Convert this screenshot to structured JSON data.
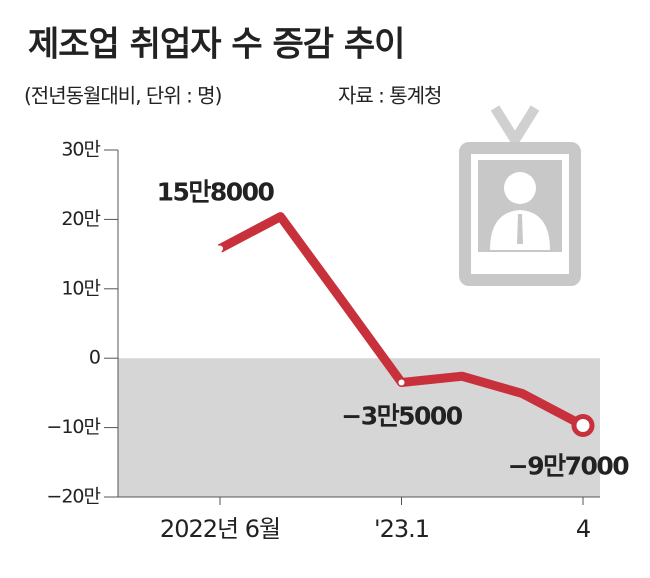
{
  "chart_data": {
    "type": "line",
    "title": "제조업 취업자 수 증감 추이",
    "subtitle": "(전년동월대비, 단위 : 명)",
    "source": "자료 : 통계청",
    "categories": [
      "2022년 6월",
      null,
      null,
      "'23.1",
      null,
      null,
      "4"
    ],
    "series": [
      {
        "name": null,
        "color": "#c8313b",
        "values": [
          158000,
          204000,
          85000,
          -35000,
          -26000,
          -51000,
          -97000
        ],
        "value_labels": [
          "15만8000",
          null,
          null,
          "−3만5000",
          null,
          null,
          "−9만7000"
        ]
      }
    ],
    "ylim": [
      -200000,
      300000
    ],
    "yticks": [
      {
        "value": 300000,
        "label": "30만"
      },
      {
        "value": 200000,
        "label": "20만"
      },
      {
        "value": 100000,
        "label": "10만"
      },
      0,
      {
        "value": -100000,
        "label": "−10만"
      },
      {
        "value": -200000,
        "label": "−20만"
      }
    ],
    "grid": false
  }
}
